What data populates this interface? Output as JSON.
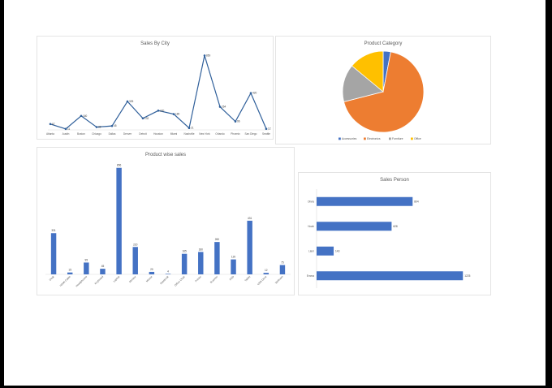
{
  "charts": [
    {
      "id": "city",
      "type": "line",
      "title": "Sales By  City",
      "categories": [
        "Atlanta",
        "Austin",
        "Boston",
        "Chicago",
        "Dallas",
        "Denver",
        "Detroit",
        "Houston",
        "Miami",
        "Nashville",
        "New York",
        "Orlando",
        "Phoenix",
        "San Diego",
        "Seattle"
      ],
      "values": [
        67,
        11,
        160,
        32,
        45,
        325,
        132,
        220,
        180,
        21,
        850,
        264,
        96,
        420,
        12
      ],
      "ylim": [
        0,
        900
      ],
      "color": "#2f5f9a"
    },
    {
      "id": "category",
      "type": "pie",
      "title": "Product Category",
      "slices": [
        {
          "label": "Accessories",
          "value": 3,
          "color": "#4472c4"
        },
        {
          "label": "Electronics",
          "value": 68,
          "color": "#ed7d31"
        },
        {
          "label": "Furniture",
          "value": 15,
          "color": "#a5a5a5"
        },
        {
          "label": "Office",
          "value": 14,
          "color": "#ffc000"
        }
      ],
      "legend": "bottom"
    },
    {
      "id": "product",
      "type": "bar",
      "title": "Product wise sales",
      "categories": [
        "Desk",
        "HDMI Cable",
        "Headphones",
        "Keyboard",
        "Laptop",
        "Monitor",
        "Mouse",
        "Notebook",
        "Office Chair",
        "Printer",
        "Scanner",
        "SSD",
        "Tablet",
        "USB Drive",
        "Webcam"
      ],
      "values": [
        331,
        15,
        95,
        45,
        856,
        220,
        20,
        4,
        165,
        180,
        260,
        120,
        431,
        12,
        75
      ],
      "ylim": [
        0,
        900
      ],
      "color": "#4472c4"
    },
    {
      "id": "salesperson",
      "type": "bar",
      "orientation": "horizontal",
      "title": "Sales Person",
      "categories": [
        "Olivia",
        "Noah",
        "Liam",
        "Emma"
      ],
      "values": [
        804,
        628,
        143,
        1225
      ],
      "xlim": [
        0,
        1400
      ],
      "color": "#4472c4"
    }
  ]
}
